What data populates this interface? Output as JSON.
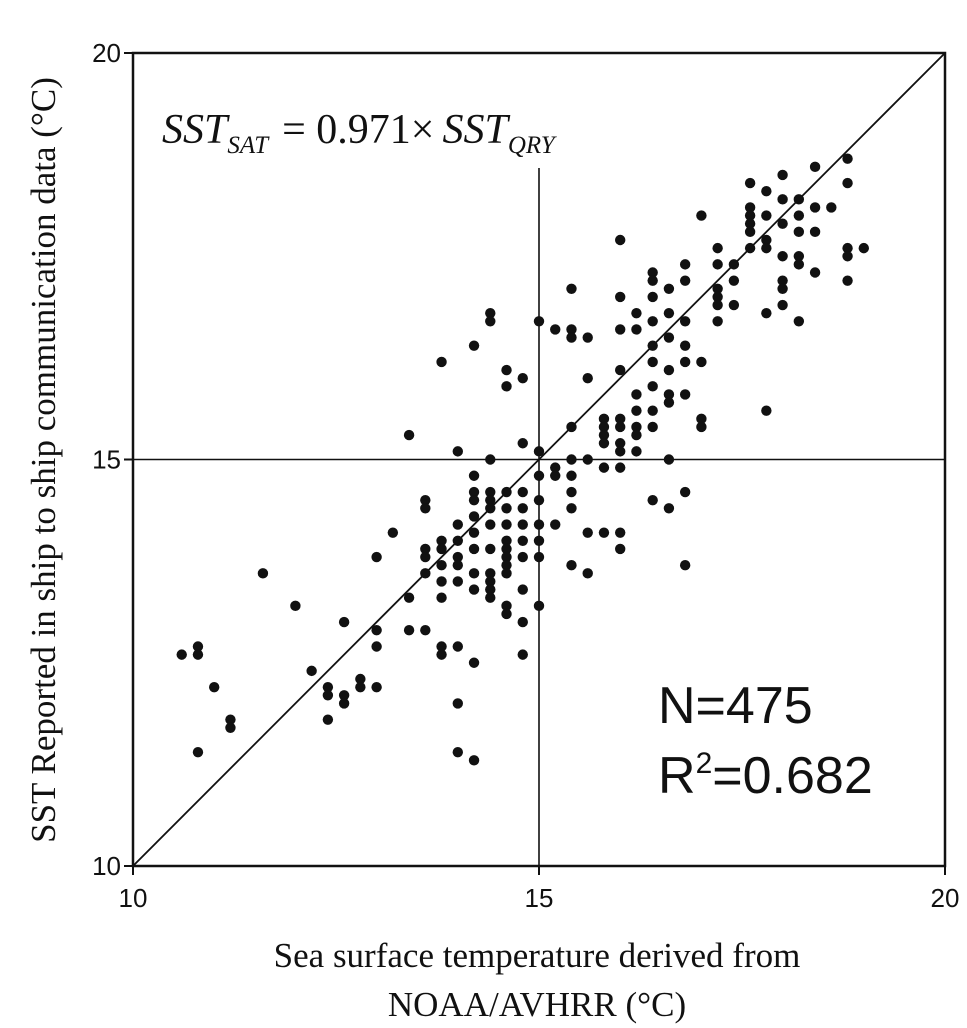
{
  "chart_data": {
    "type": "scatter",
    "equation": {
      "lhs": "SST",
      "lhs_sub": "SAT",
      "operator": "= 0.971×",
      "rhs": "SST",
      "rhs_sub": "QRY"
    },
    "ylabel": "SST Reported in ship to ship communication data (°C)",
    "xlabel_line1": "Sea surface temperature derived from",
    "xlabel_line2": "NOAA/AVHRR (°C)",
    "xlim": [
      10,
      20
    ],
    "ylim": [
      10,
      20
    ],
    "x_ticks": [
      "10",
      "15",
      "20"
    ],
    "y_ticks": [
      "10",
      "15",
      "20"
    ],
    "reference_lines": {
      "x": 15,
      "y": 15
    },
    "fit_line": {
      "slope": 0.971,
      "through_origin": true
    },
    "stats": {
      "n_label": "N=475",
      "r2_prefix": "R",
      "r2_sup": "2",
      "r2_value": "=0.682"
    },
    "grid": false,
    "point_color": "#111111",
    "points": [
      [
        10.6,
        12.6
      ],
      [
        10.8,
        12.7
      ],
      [
        10.8,
        12.6
      ],
      [
        10.8,
        11.4
      ],
      [
        11.0,
        12.2
      ],
      [
        11.2,
        11.8
      ],
      [
        11.2,
        11.7
      ],
      [
        11.6,
        13.6
      ],
      [
        12.0,
        13.2
      ],
      [
        12.2,
        12.4
      ],
      [
        12.4,
        12.2
      ],
      [
        12.4,
        12.1
      ],
      [
        12.4,
        11.8
      ],
      [
        12.6,
        13.0
      ],
      [
        12.6,
        12.1
      ],
      [
        12.6,
        12.0
      ],
      [
        12.8,
        12.3
      ],
      [
        12.8,
        12.2
      ],
      [
        13.0,
        12.9
      ],
      [
        13.0,
        12.7
      ],
      [
        13.0,
        12.2
      ],
      [
        13.0,
        13.8
      ],
      [
        13.2,
        14.1
      ],
      [
        13.4,
        13.3
      ],
      [
        13.4,
        12.9
      ],
      [
        13.4,
        15.3
      ],
      [
        13.6,
        14.5
      ],
      [
        13.6,
        14.4
      ],
      [
        13.6,
        13.9
      ],
      [
        13.6,
        13.8
      ],
      [
        13.6,
        13.6
      ],
      [
        13.6,
        12.9
      ],
      [
        13.8,
        14.0
      ],
      [
        13.8,
        13.9
      ],
      [
        13.8,
        13.7
      ],
      [
        13.8,
        13.5
      ],
      [
        13.8,
        13.3
      ],
      [
        13.8,
        12.7
      ],
      [
        13.8,
        12.6
      ],
      [
        13.8,
        16.2
      ],
      [
        14.0,
        14.2
      ],
      [
        14.0,
        14.0
      ],
      [
        14.0,
        13.8
      ],
      [
        14.0,
        13.7
      ],
      [
        14.0,
        13.5
      ],
      [
        14.0,
        12.7
      ],
      [
        14.0,
        12.0
      ],
      [
        14.0,
        11.4
      ],
      [
        14.0,
        15.1
      ],
      [
        14.2,
        14.8
      ],
      [
        14.2,
        14.6
      ],
      [
        14.2,
        14.5
      ],
      [
        14.2,
        14.3
      ],
      [
        14.2,
        14.1
      ],
      [
        14.2,
        13.9
      ],
      [
        14.2,
        13.6
      ],
      [
        14.2,
        13.4
      ],
      [
        14.2,
        12.5
      ],
      [
        14.2,
        11.3
      ],
      [
        14.2,
        16.4
      ],
      [
        14.4,
        16.8
      ],
      [
        14.4,
        16.7
      ],
      [
        14.4,
        15.0
      ],
      [
        14.4,
        14.6
      ],
      [
        14.4,
        14.5
      ],
      [
        14.4,
        14.4
      ],
      [
        14.4,
        14.2
      ],
      [
        14.4,
        13.9
      ],
      [
        14.4,
        13.6
      ],
      [
        14.4,
        13.5
      ],
      [
        14.4,
        13.4
      ],
      [
        14.4,
        13.3
      ],
      [
        14.6,
        16.1
      ],
      [
        14.6,
        15.9
      ],
      [
        14.6,
        14.6
      ],
      [
        14.6,
        14.4
      ],
      [
        14.6,
        14.2
      ],
      [
        14.6,
        14.0
      ],
      [
        14.6,
        13.9
      ],
      [
        14.6,
        13.8
      ],
      [
        14.6,
        13.7
      ],
      [
        14.6,
        13.6
      ],
      [
        14.6,
        13.2
      ],
      [
        14.6,
        13.1
      ],
      [
        14.8,
        16.0
      ],
      [
        14.8,
        15.2
      ],
      [
        14.8,
        14.6
      ],
      [
        14.8,
        14.4
      ],
      [
        14.8,
        14.2
      ],
      [
        14.8,
        14.0
      ],
      [
        14.8,
        13.8
      ],
      [
        14.8,
        13.4
      ],
      [
        14.8,
        13.0
      ],
      [
        14.8,
        12.6
      ],
      [
        15.0,
        16.7
      ],
      [
        15.0,
        15.1
      ],
      [
        15.0,
        14.8
      ],
      [
        15.0,
        14.5
      ],
      [
        15.0,
        14.2
      ],
      [
        15.0,
        14.0
      ],
      [
        15.0,
        13.8
      ],
      [
        15.0,
        13.2
      ],
      [
        15.2,
        14.9
      ],
      [
        15.2,
        14.8
      ],
      [
        15.2,
        14.2
      ],
      [
        15.2,
        16.6
      ],
      [
        15.4,
        17.1
      ],
      [
        15.4,
        16.6
      ],
      [
        15.4,
        16.5
      ],
      [
        15.4,
        15.4
      ],
      [
        15.4,
        15.0
      ],
      [
        15.4,
        14.8
      ],
      [
        15.4,
        14.6
      ],
      [
        15.4,
        14.4
      ],
      [
        15.4,
        13.7
      ],
      [
        15.6,
        16.5
      ],
      [
        15.6,
        16.0
      ],
      [
        15.6,
        15.0
      ],
      [
        15.6,
        14.1
      ],
      [
        15.6,
        13.6
      ],
      [
        15.8,
        15.5
      ],
      [
        15.8,
        15.4
      ],
      [
        15.8,
        15.3
      ],
      [
        15.8,
        15.2
      ],
      [
        15.8,
        14.9
      ],
      [
        15.8,
        14.1
      ],
      [
        16.0,
        17.7
      ],
      [
        16.0,
        17.0
      ],
      [
        16.0,
        16.6
      ],
      [
        16.0,
        16.1
      ],
      [
        16.0,
        15.5
      ],
      [
        16.0,
        15.4
      ],
      [
        16.0,
        15.2
      ],
      [
        16.0,
        15.1
      ],
      [
        16.0,
        14.9
      ],
      [
        16.0,
        14.1
      ],
      [
        16.0,
        13.9
      ],
      [
        16.2,
        16.8
      ],
      [
        16.2,
        16.6
      ],
      [
        16.2,
        15.8
      ],
      [
        16.2,
        15.6
      ],
      [
        16.2,
        15.4
      ],
      [
        16.2,
        15.3
      ],
      [
        16.2,
        15.1
      ],
      [
        16.4,
        17.3
      ],
      [
        16.4,
        17.2
      ],
      [
        16.4,
        17.0
      ],
      [
        16.4,
        16.7
      ],
      [
        16.4,
        16.4
      ],
      [
        16.4,
        16.2
      ],
      [
        16.4,
        15.9
      ],
      [
        16.4,
        15.6
      ],
      [
        16.4,
        15.4
      ],
      [
        16.4,
        14.5
      ],
      [
        16.6,
        17.1
      ],
      [
        16.6,
        16.8
      ],
      [
        16.6,
        16.5
      ],
      [
        16.6,
        16.1
      ],
      [
        16.6,
        15.8
      ],
      [
        16.6,
        15.7
      ],
      [
        16.6,
        15.0
      ],
      [
        16.6,
        14.4
      ],
      [
        16.8,
        17.4
      ],
      [
        16.8,
        17.2
      ],
      [
        16.8,
        16.7
      ],
      [
        16.8,
        16.4
      ],
      [
        16.8,
        16.2
      ],
      [
        16.8,
        15.8
      ],
      [
        16.8,
        14.6
      ],
      [
        16.8,
        13.7
      ],
      [
        17.0,
        18.0
      ],
      [
        17.0,
        16.2
      ],
      [
        17.0,
        15.5
      ],
      [
        17.0,
        15.4
      ],
      [
        17.2,
        17.6
      ],
      [
        17.2,
        17.4
      ],
      [
        17.2,
        17.1
      ],
      [
        17.2,
        17.0
      ],
      [
        17.2,
        16.9
      ],
      [
        17.2,
        16.7
      ],
      [
        17.4,
        17.4
      ],
      [
        17.4,
        17.2
      ],
      [
        17.4,
        16.9
      ],
      [
        17.6,
        18.4
      ],
      [
        17.6,
        18.1
      ],
      [
        17.6,
        18.0
      ],
      [
        17.6,
        17.9
      ],
      [
        17.6,
        17.8
      ],
      [
        17.6,
        17.6
      ],
      [
        17.8,
        18.3
      ],
      [
        17.8,
        18.0
      ],
      [
        17.8,
        17.7
      ],
      [
        17.8,
        17.6
      ],
      [
        17.8,
        16.8
      ],
      [
        17.8,
        15.6
      ],
      [
        18.0,
        18.5
      ],
      [
        18.0,
        18.2
      ],
      [
        18.0,
        17.9
      ],
      [
        18.0,
        17.5
      ],
      [
        18.0,
        17.2
      ],
      [
        18.0,
        17.1
      ],
      [
        18.0,
        16.9
      ],
      [
        18.2,
        18.2
      ],
      [
        18.2,
        18.0
      ],
      [
        18.2,
        17.8
      ],
      [
        18.2,
        17.5
      ],
      [
        18.2,
        17.4
      ],
      [
        18.2,
        16.7
      ],
      [
        18.4,
        18.6
      ],
      [
        18.4,
        18.1
      ],
      [
        18.4,
        17.8
      ],
      [
        18.4,
        17.3
      ],
      [
        18.6,
        18.1
      ],
      [
        18.8,
        18.7
      ],
      [
        18.8,
        18.4
      ],
      [
        18.8,
        17.6
      ],
      [
        18.8,
        17.5
      ],
      [
        18.8,
        17.2
      ],
      [
        19.0,
        17.6
      ]
    ]
  }
}
